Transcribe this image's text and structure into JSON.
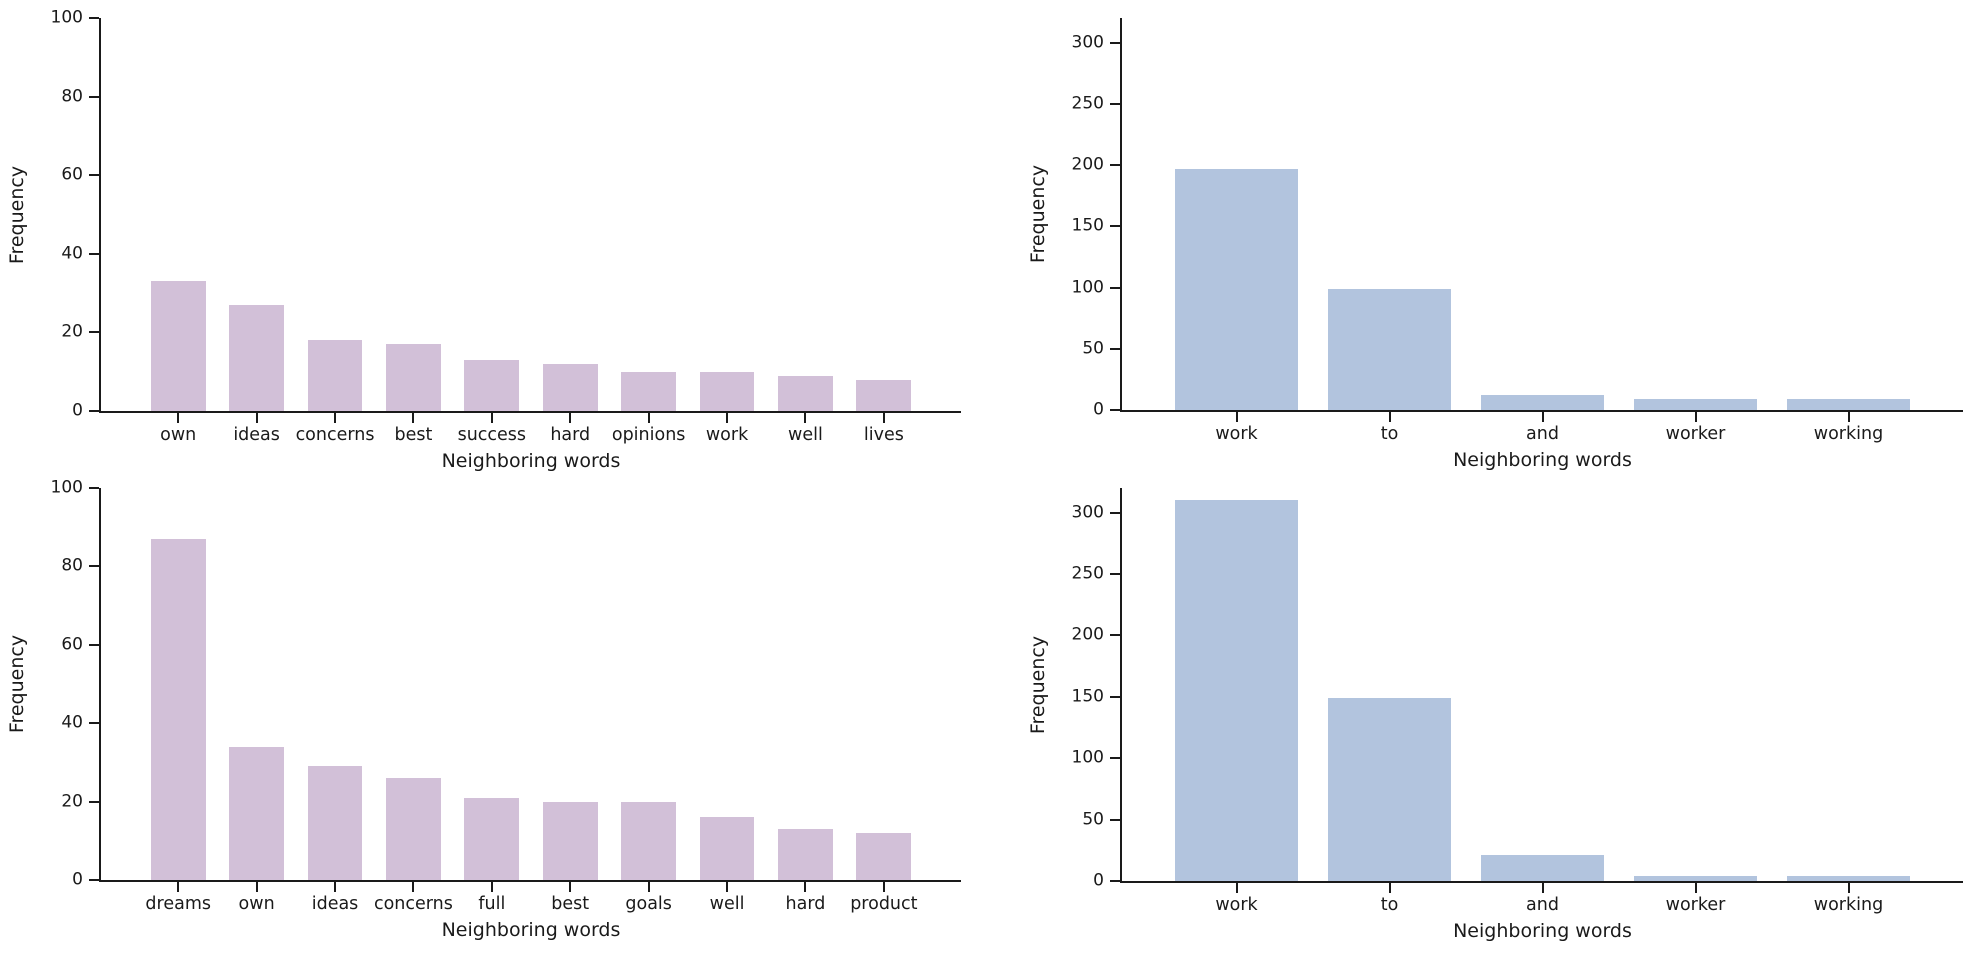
{
  "figure": {
    "background": "#ffffff",
    "axis_color": "#1a1a1a",
    "text_color": "#1a1a1a",
    "mauve_bar_color": "#d2c0d8",
    "blue_bar_color": "#b2c4de"
  },
  "chart_data": [
    {
      "type": "bar",
      "position": "top-left",
      "xlabel": "Neighboring words",
      "ylabel": "Frequency",
      "categories": [
        "own",
        "ideas",
        "concerns",
        "best",
        "success",
        "hard",
        "opinions",
        "work",
        "well",
        "lives"
      ],
      "values": [
        33,
        27,
        18,
        17,
        13,
        12,
        10,
        10,
        9,
        8
      ],
      "yticks": [
        0,
        20,
        40,
        60,
        80,
        100
      ],
      "ylim": [
        0,
        100
      ],
      "bar_color": "#d2c0d8",
      "grid": false,
      "legend": "none"
    },
    {
      "type": "bar",
      "position": "top-right",
      "xlabel": "Neighboring words",
      "ylabel": "Frequency",
      "categories": [
        "work",
        "to",
        "and",
        "worker",
        "working"
      ],
      "values": [
        197,
        99,
        12,
        9,
        9
      ],
      "yticks": [
        0,
        50,
        100,
        150,
        200,
        250,
        300
      ],
      "ylim": [
        0,
        320
      ],
      "bar_color": "#b2c4de",
      "grid": false,
      "legend": "none"
    },
    {
      "type": "bar",
      "position": "bottom-left",
      "xlabel": "Neighboring words",
      "ylabel": "Frequency",
      "categories": [
        "dreams",
        "own",
        "ideas",
        "concerns",
        "full",
        "best",
        "goals",
        "well",
        "hard",
        "product"
      ],
      "values": [
        87,
        34,
        29,
        26,
        21,
        20,
        20,
        16,
        13,
        12
      ],
      "yticks": [
        0,
        20,
        40,
        60,
        80,
        100
      ],
      "ylim": [
        0,
        100
      ],
      "bar_color": "#d2c0d8",
      "grid": false,
      "legend": "none"
    },
    {
      "type": "bar",
      "position": "bottom-right",
      "xlabel": "Neighboring words",
      "ylabel": "Frequency",
      "categories": [
        "work",
        "to",
        "and",
        "worker",
        "working"
      ],
      "values": [
        310,
        149,
        21,
        4,
        4
      ],
      "yticks": [
        0,
        50,
        100,
        150,
        200,
        250,
        300
      ],
      "ylim": [
        0,
        320
      ],
      "bar_color": "#b2c4de",
      "grid": false,
      "legend": "none"
    }
  ]
}
